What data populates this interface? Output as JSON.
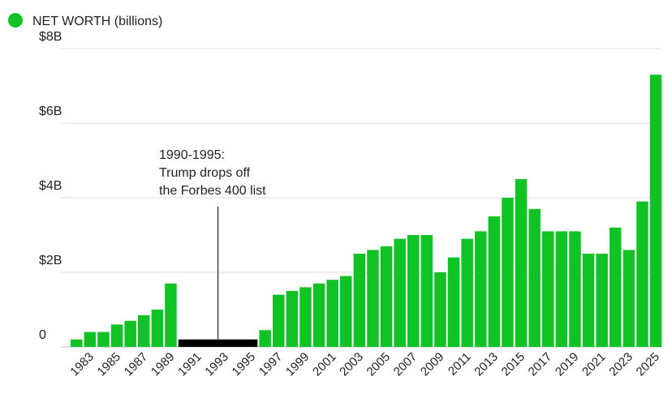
{
  "chart_data": {
    "type": "bar",
    "title": "",
    "legend": {
      "label": "NET WORTH (billions)",
      "color": "#0fc325",
      "placement": "top-left"
    },
    "xlabel": "",
    "ylabel": "",
    "ylim": [
      0,
      8
    ],
    "yticks": [
      {
        "value": 0,
        "label": "0"
      },
      {
        "value": 2,
        "label": "$2B"
      },
      {
        "value": 4,
        "label": "$4B"
      },
      {
        "value": 6,
        "label": "$6B"
      },
      {
        "value": 8,
        "label": "$8B"
      }
    ],
    "grid": true,
    "bar_color": "#0fc325",
    "gap_color": "#000000",
    "xtick_labels": [
      "1983",
      "1985",
      "1987",
      "1989",
      "1991",
      "1993",
      "1995",
      "1997",
      "1999",
      "2001",
      "2003",
      "2005",
      "2007",
      "2009",
      "2011",
      "2013",
      "2015",
      "2017",
      "2019",
      "2021",
      "2023",
      "2025"
    ],
    "categories": [
      1982,
      1983,
      1984,
      1985,
      1986,
      1987,
      1988,
      1989,
      1996,
      1997,
      1998,
      1999,
      2000,
      2001,
      2002,
      2003,
      2004,
      2005,
      2006,
      2007,
      2008,
      2009,
      2010,
      2011,
      2012,
      2013,
      2014,
      2015,
      2016,
      2017,
      2018,
      2019,
      2020,
      2021,
      2022,
      2023,
      2024,
      2025
    ],
    "values": [
      0.2,
      0.4,
      0.4,
      0.6,
      0.7,
      0.85,
      1.0,
      1.7,
      0.45,
      1.4,
      1.5,
      1.6,
      1.7,
      1.8,
      1.9,
      2.5,
      2.6,
      2.7,
      2.9,
      3.0,
      3.0,
      2.0,
      2.4,
      2.9,
      3.1,
      3.5,
      4.0,
      4.5,
      3.7,
      3.1,
      3.1,
      3.1,
      2.5,
      2.5,
      3.2,
      2.6,
      3.9,
      7.3
    ],
    "gap_period": {
      "start": 1990,
      "end": 1995,
      "value": 0.2
    },
    "annotation": {
      "lines": [
        "1990-1995:",
        "Trump drops off",
        "the Forbes 400 list"
      ],
      "year": 1992.5
    }
  }
}
